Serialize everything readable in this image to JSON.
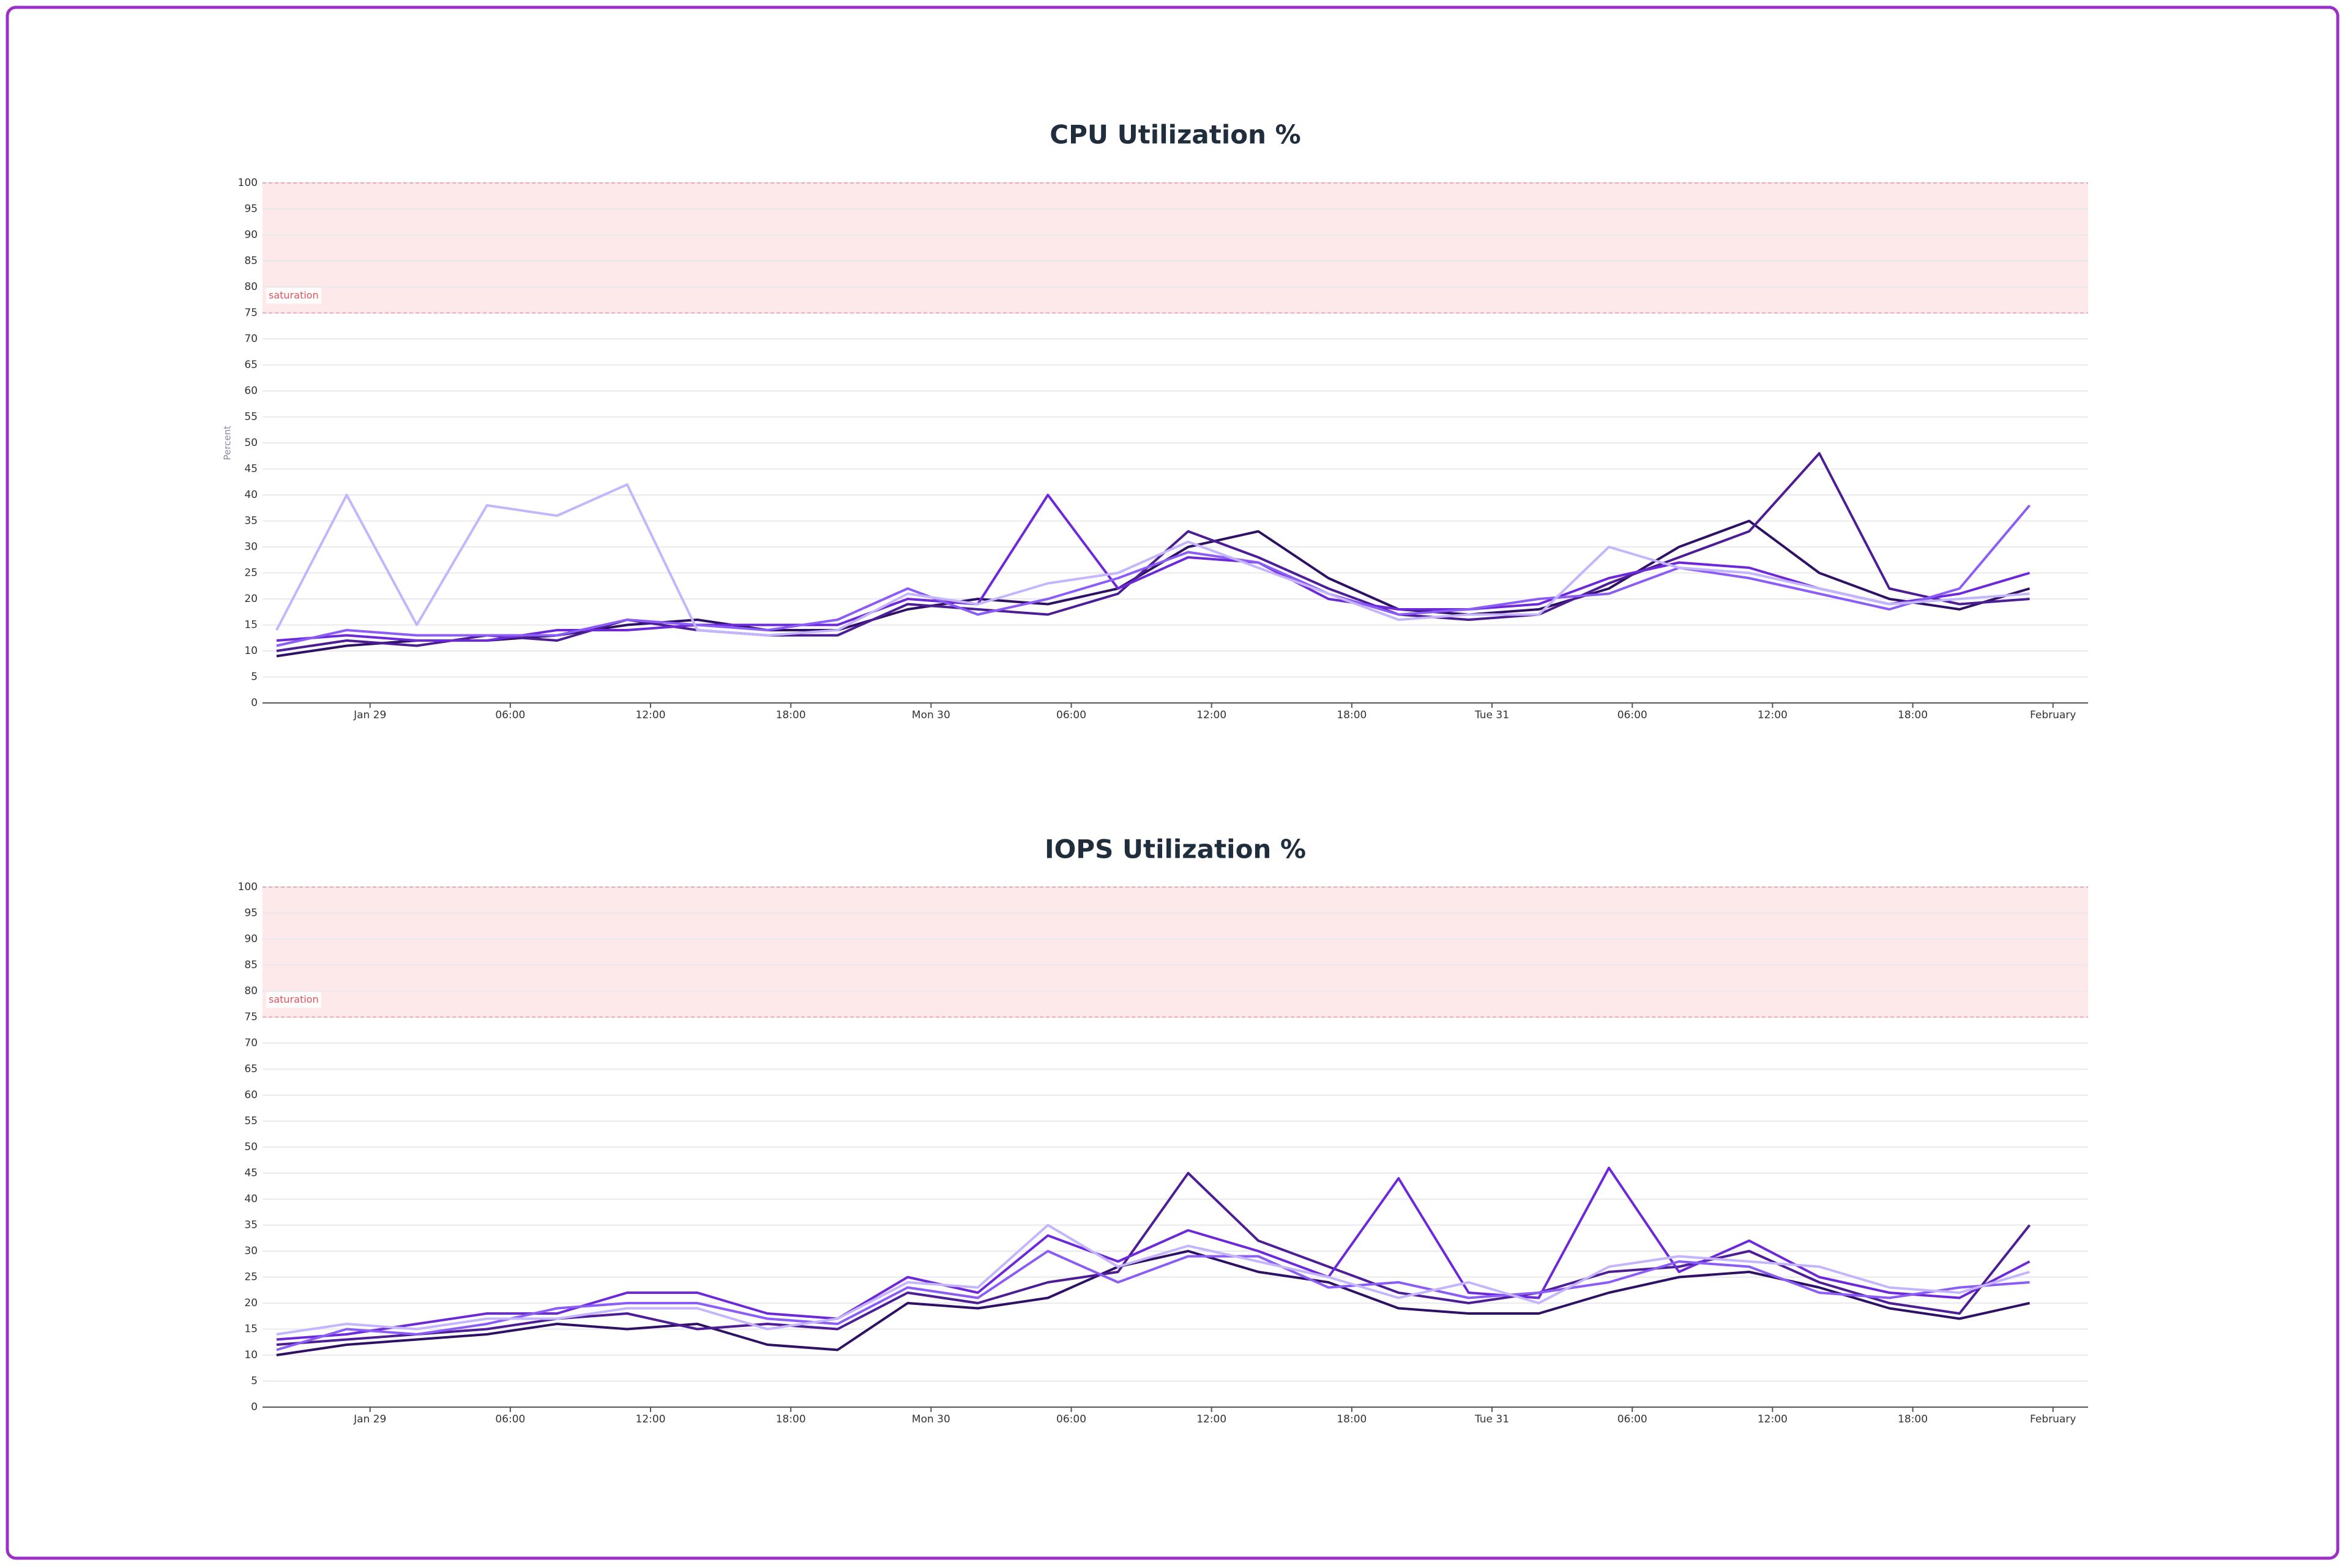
{
  "chart_data": [
    {
      "type": "line",
      "title": "CPU Utilization %",
      "y_label": "Percent",
      "x": [
        -4,
        -1,
        2,
        5,
        8,
        11,
        14,
        17,
        20,
        23,
        26,
        29,
        32,
        35,
        38,
        41,
        44,
        47,
        50,
        53,
        56,
        59,
        62,
        65,
        68,
        71
      ],
      "xlim": [
        -4.6,
        73.5
      ],
      "xticks": [
        {
          "value": 0,
          "label": "Jan 29"
        },
        {
          "value": 6,
          "label": "06:00"
        },
        {
          "value": 12,
          "label": "12:00"
        },
        {
          "value": 18,
          "label": "18:00"
        },
        {
          "value": 24,
          "label": "Mon 30"
        },
        {
          "value": 30,
          "label": "06:00"
        },
        {
          "value": 36,
          "label": "12:00"
        },
        {
          "value": 42,
          "label": "18:00"
        },
        {
          "value": 48,
          "label": "Tue 31"
        },
        {
          "value": 54,
          "label": "06:00"
        },
        {
          "value": 60,
          "label": "12:00"
        },
        {
          "value": 66,
          "label": "18:00"
        },
        {
          "value": 72,
          "label": "February"
        }
      ],
      "ylim": [
        0,
        100
      ],
      "yticks": [
        0,
        5,
        10,
        15,
        20,
        25,
        30,
        35,
        40,
        45,
        50,
        55,
        60,
        65,
        70,
        75,
        80,
        85,
        90,
        95,
        100
      ],
      "grid": true,
      "saturation": {
        "label": "saturation",
        "from": 75,
        "to": 100
      },
      "series": [
        {
          "color": "#2e1065",
          "values": [
            9,
            11,
            12,
            12,
            13,
            15,
            16,
            14,
            14,
            18,
            20,
            19,
            22,
            30,
            33,
            24,
            18,
            17,
            18,
            22,
            30,
            35,
            25,
            20,
            18,
            22
          ]
        },
        {
          "color": "#4c1d95",
          "values": [
            10,
            12,
            11,
            13,
            12,
            16,
            14,
            13,
            13,
            19,
            18,
            17,
            21,
            33,
            28,
            22,
            17,
            16,
            17,
            23,
            28,
            33,
            48,
            22,
            19,
            20
          ]
        },
        {
          "color": "#6d28d9",
          "values": [
            12,
            13,
            12,
            12,
            14,
            14,
            15,
            15,
            15,
            20,
            19,
            40,
            22,
            28,
            27,
            20,
            18,
            18,
            19,
            24,
            27,
            26,
            22,
            19,
            21,
            25
          ]
        },
        {
          "color": "#8b5cf6",
          "values": [
            11,
            14,
            13,
            13,
            13,
            16,
            15,
            14,
            16,
            22,
            17,
            20,
            24,
            29,
            27,
            21,
            17,
            18,
            20,
            21,
            26,
            24,
            21,
            18,
            22,
            38
          ]
        },
        {
          "color": "#c4b5fd",
          "values": [
            14,
            40,
            15,
            38,
            36,
            42,
            14,
            13,
            14,
            21,
            19,
            23,
            25,
            31,
            26,
            21,
            16,
            17,
            17,
            30,
            26,
            25,
            22,
            19,
            20,
            21
          ]
        }
      ]
    },
    {
      "type": "line",
      "title": "IOPS Utilization %",
      "x": [
        -4,
        -1,
        2,
        5,
        8,
        11,
        14,
        17,
        20,
        23,
        26,
        29,
        32,
        35,
        38,
        41,
        44,
        47,
        50,
        53,
        56,
        59,
        62,
        65,
        68,
        71
      ],
      "xlim": [
        -4.6,
        73.5
      ],
      "xticks": [
        {
          "value": 0,
          "label": "Jan 29"
        },
        {
          "value": 6,
          "label": "06:00"
        },
        {
          "value": 12,
          "label": "12:00"
        },
        {
          "value": 18,
          "label": "18:00"
        },
        {
          "value": 24,
          "label": "Mon 30"
        },
        {
          "value": 30,
          "label": "06:00"
        },
        {
          "value": 36,
          "label": "12:00"
        },
        {
          "value": 42,
          "label": "18:00"
        },
        {
          "value": 48,
          "label": "Tue 31"
        },
        {
          "value": 54,
          "label": "06:00"
        },
        {
          "value": 60,
          "label": "12:00"
        },
        {
          "value": 66,
          "label": "18:00"
        },
        {
          "value": 72,
          "label": "February"
        }
      ],
      "ylim": [
        0,
        100
      ],
      "yticks": [
        0,
        5,
        10,
        15,
        20,
        25,
        30,
        35,
        40,
        45,
        50,
        55,
        60,
        65,
        70,
        75,
        80,
        85,
        90,
        95,
        100
      ],
      "grid": true,
      "saturation": {
        "label": "saturation",
        "from": 75,
        "to": 100
      },
      "series": [
        {
          "color": "#2e1065",
          "values": [
            10,
            12,
            13,
            14,
            16,
            15,
            16,
            12,
            11,
            20,
            19,
            21,
            27,
            30,
            26,
            24,
            19,
            18,
            18,
            22,
            25,
            26,
            23,
            19,
            17,
            20
          ]
        },
        {
          "color": "#4c1d95",
          "values": [
            12,
            13,
            14,
            15,
            17,
            18,
            15,
            16,
            15,
            22,
            20,
            24,
            26,
            45,
            32,
            27,
            22,
            20,
            22,
            26,
            27,
            30,
            24,
            20,
            18,
            35
          ]
        },
        {
          "color": "#6d28d9",
          "values": [
            13,
            14,
            16,
            18,
            18,
            22,
            22,
            18,
            17,
            25,
            22,
            33,
            28,
            34,
            30,
            25,
            44,
            22,
            21,
            46,
            26,
            32,
            25,
            22,
            21,
            28
          ]
        },
        {
          "color": "#8b5cf6",
          "values": [
            11,
            15,
            14,
            16,
            19,
            20,
            20,
            17,
            16,
            23,
            21,
            30,
            24,
            29,
            29,
            23,
            24,
            21,
            22,
            24,
            28,
            27,
            22,
            21,
            23,
            24
          ]
        },
        {
          "color": "#c4b5fd",
          "values": [
            14,
            16,
            15,
            17,
            17,
            19,
            19,
            15,
            17,
            24,
            23,
            35,
            27,
            31,
            28,
            25,
            21,
            24,
            20,
            27,
            29,
            28,
            27,
            23,
            22,
            26
          ]
        }
      ]
    }
  ]
}
